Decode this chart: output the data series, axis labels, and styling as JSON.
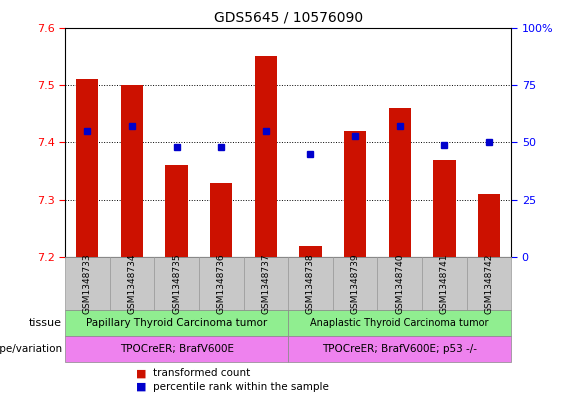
{
  "title": "GDS5645 / 10576090",
  "samples": [
    "GSM1348733",
    "GSM1348734",
    "GSM1348735",
    "GSM1348736",
    "GSM1348737",
    "GSM1348738",
    "GSM1348739",
    "GSM1348740",
    "GSM1348741",
    "GSM1348742"
  ],
  "transformed_count": [
    7.51,
    7.5,
    7.36,
    7.33,
    7.55,
    7.22,
    7.42,
    7.46,
    7.37,
    7.31
  ],
  "percentile_rank": [
    55,
    57,
    48,
    48,
    55,
    45,
    53,
    57,
    49,
    50
  ],
  "ylim_left": [
    7.2,
    7.6
  ],
  "ylim_right": [
    0,
    100
  ],
  "yticks_left": [
    7.2,
    7.3,
    7.4,
    7.5,
    7.6
  ],
  "yticks_right": [
    0,
    25,
    50,
    75,
    100
  ],
  "bar_color": "#cc1100",
  "dot_color": "#0000cc",
  "tissue_group1": "Papillary Thyroid Carcinoma tumor",
  "tissue_group2": "Anaplastic Thyroid Carcinoma tumor",
  "tissue_color": "#90ee90",
  "genotype_group1": "TPOCreER; BrafV600E",
  "genotype_group2": "TPOCreER; BrafV600E; p53 -/-",
  "genotype_color": "#ee82ee",
  "n_group1": 5,
  "n_group2": 5,
  "legend_red_label": "transformed count",
  "legend_blue_label": "percentile rank within the sample",
  "label_tissue": "tissue",
  "label_genotype": "genotype/variation",
  "tick_bg_color": "#c8c8c8",
  "tick_border_color": "#999999"
}
